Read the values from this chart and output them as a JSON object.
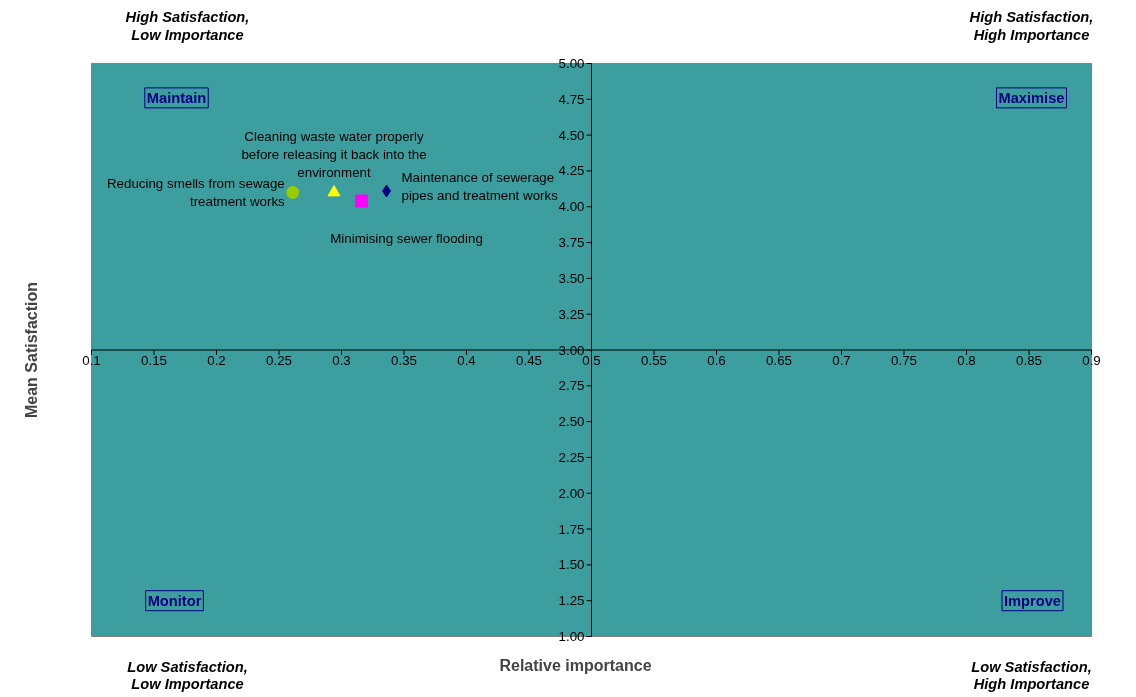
{
  "chart_data": {
    "type": "scatter",
    "xlabel": "Relative importance",
    "ylabel": "Mean Satisfaction",
    "xlim": [
      0.1,
      0.9
    ],
    "ylim": [
      1,
      5
    ],
    "xticks": [
      0.1,
      0.15,
      0.2,
      0.25,
      0.3,
      0.35,
      0.4,
      0.45,
      {
        "value": 0.5,
        "label": "0.5"
      },
      0.55,
      0.6,
      0.65,
      0.7,
      0.75,
      0.8,
      0.85,
      0.9
    ],
    "yticks": [
      {
        "value": 1,
        "label": "1.00"
      },
      {
        "value": 1.25,
        "label": "1.25"
      },
      {
        "value": 1.5,
        "label": "1.50"
      },
      {
        "value": 1.75,
        "label": "1.75"
      },
      {
        "value": 2,
        "label": "2.00"
      },
      {
        "value": 2.25,
        "label": "2.25"
      },
      {
        "value": 2.5,
        "label": "2.50"
      },
      {
        "value": 2.75,
        "label": "2.75"
      },
      {
        "value": 3,
        "label": "3.00"
      },
      {
        "value": 3.25,
        "label": "3.25"
      },
      {
        "value": 3.5,
        "label": "3.50"
      },
      {
        "value": 3.75,
        "label": "3.75"
      },
      {
        "value": 4,
        "label": "4.00"
      },
      {
        "value": 4.25,
        "label": "4.25"
      },
      {
        "value": 4.5,
        "label": "4.50"
      },
      {
        "value": 4.75,
        "label": "4.75"
      },
      {
        "value": 5,
        "label": "5.00"
      }
    ],
    "grid": false,
    "legend": false,
    "series": [
      {
        "name": "Reducing smells from sewage\ntreatment works",
        "color": "#99cc00",
        "marker": "circle",
        "x": [
          0.261
        ],
        "values": [
          4.1
        ]
      },
      {
        "name": "Cleaning waste water properly\nbefore releasing it back into the\nenvironment",
        "color": "#ffff00",
        "marker": "triangle",
        "x": [
          0.294
        ],
        "values": [
          4.1
        ]
      },
      {
        "name": "Minimising sewer flooding",
        "color": "#ff00ff",
        "marker": "square",
        "x": [
          0.316
        ],
        "values": [
          4.04
        ]
      },
      {
        "name": "Maintenance of sewerage\npipes and treatment works",
        "color": "#000080",
        "marker": "diamond",
        "x": [
          0.336
        ],
        "values": [
          4.11
        ]
      }
    ],
    "annotations": [
      "Maintain",
      "Maximise",
      "Monitor",
      "Improve",
      "High Satisfaction,\nLow Importance",
      "High Satisfaction,\nHigh Importance",
      "Low Satisfaction,\nLow Importance",
      "Low Satisfaction,\nHigh Importance"
    ]
  }
}
